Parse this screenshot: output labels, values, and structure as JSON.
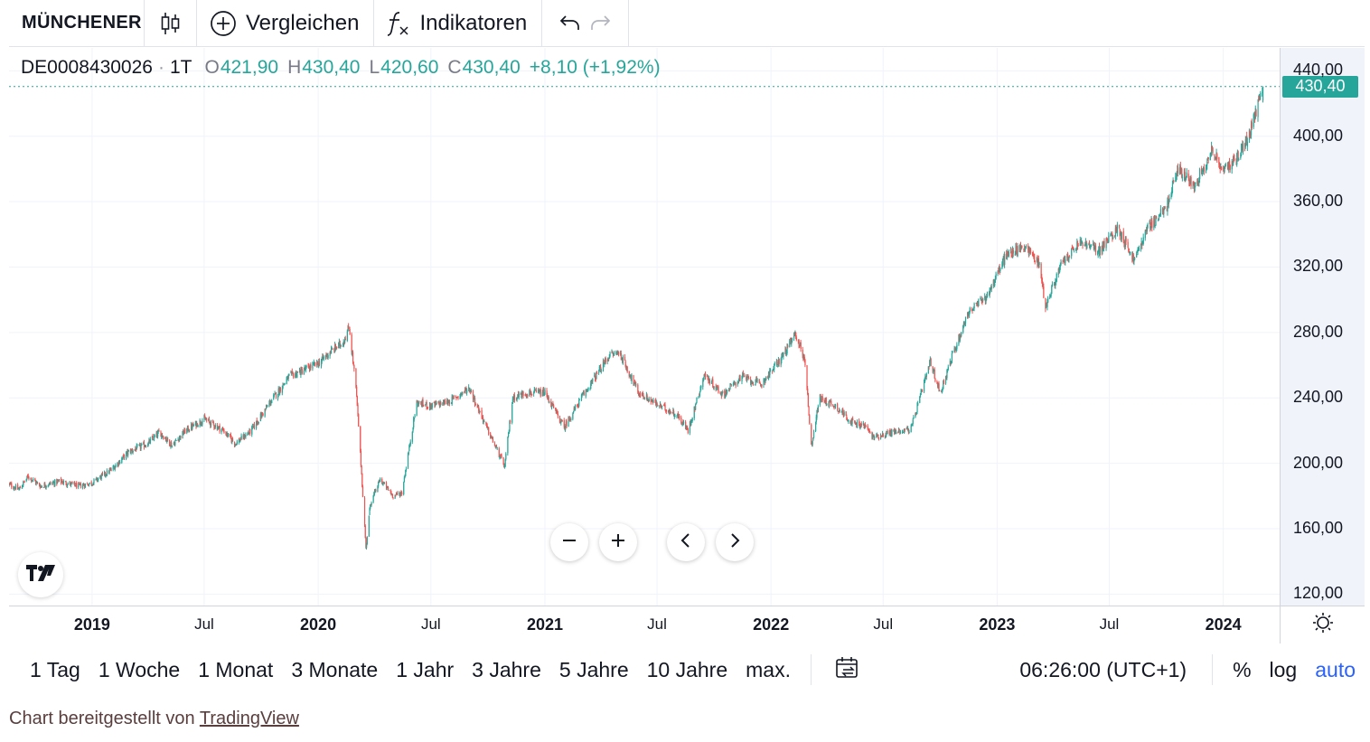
{
  "toolbar": {
    "symbol": "MÜNCHENER",
    "chart_type_icon": "candlestick-icon",
    "compare_label": "Vergleichen",
    "indicators_label": "Indikatoren",
    "undo_icon": "undo-icon",
    "redo_icon": "redo-icon"
  },
  "legend": {
    "symbol": "DE0008430026",
    "interval": "1T",
    "open_key": "O",
    "open": "421,90",
    "high_key": "H",
    "high": "430,40",
    "low_key": "L",
    "low": "420,60",
    "close_key": "C",
    "close": "430,40",
    "change": "+8,10 (+1,92%)"
  },
  "last_price": "430,40",
  "colors": {
    "up": "#26a69a",
    "down": "#ef5350",
    "accent": "#2962ff",
    "axis_bg": "#f0f3fa"
  },
  "chart_data": {
    "type": "candlestick",
    "title": "",
    "y_ticks": [
      "440,00",
      "400,00",
      "360,00",
      "320,00",
      "280,00",
      "240,00",
      "200,00",
      "160,00",
      "120,00"
    ],
    "ylim": [
      113,
      454
    ],
    "x_ticks": [
      "2019",
      "Jul",
      "2020",
      "Jul",
      "2021",
      "Jul",
      "2022",
      "Jul",
      "2023",
      "Jul",
      "2024"
    ],
    "xlim": [
      "2018-08-20",
      "2024-04-01"
    ],
    "grid": true,
    "series": [
      {
        "interval": "1T",
        "approx_close_path": [
          [
            "2018-08-20",
            187
          ],
          [
            "2018-09-05",
            184
          ],
          [
            "2018-09-20",
            192
          ],
          [
            "2018-10-10",
            186
          ],
          [
            "2018-11-10",
            189
          ],
          [
            "2018-12-10",
            186
          ],
          [
            "2019-01-01",
            188
          ],
          [
            "2019-02-01",
            196
          ],
          [
            "2019-03-01",
            207
          ],
          [
            "2019-04-01",
            212
          ],
          [
            "2019-04-20",
            219
          ],
          [
            "2019-05-10",
            211
          ],
          [
            "2019-06-01",
            220
          ],
          [
            "2019-07-01",
            227
          ],
          [
            "2019-08-01",
            220
          ],
          [
            "2019-08-20",
            212
          ],
          [
            "2019-09-15",
            220
          ],
          [
            "2019-10-15",
            237
          ],
          [
            "2019-11-15",
            253
          ],
          [
            "2020-01-01",
            261
          ],
          [
            "2020-01-20",
            268
          ],
          [
            "2020-02-10",
            274
          ],
          [
            "2020-02-20",
            283
          ],
          [
            "2020-03-02",
            246
          ],
          [
            "2020-03-10",
            200
          ],
          [
            "2020-03-18",
            148
          ],
          [
            "2020-03-25",
            175
          ],
          [
            "2020-04-10",
            190
          ],
          [
            "2020-05-01",
            180
          ],
          [
            "2020-05-15",
            182
          ],
          [
            "2020-06-08",
            237
          ],
          [
            "2020-07-01",
            235
          ],
          [
            "2020-08-01",
            238
          ],
          [
            "2020-09-01",
            246
          ],
          [
            "2020-10-01",
            220
          ],
          [
            "2020-10-28",
            198
          ],
          [
            "2020-11-10",
            240
          ],
          [
            "2020-12-01",
            243
          ],
          [
            "2021-01-01",
            243
          ],
          [
            "2021-02-01",
            222
          ],
          [
            "2021-03-01",
            240
          ],
          [
            "2021-04-15",
            266
          ],
          [
            "2021-05-01",
            268
          ],
          [
            "2021-06-01",
            243
          ],
          [
            "2021-07-01",
            236
          ],
          [
            "2021-08-01",
            230
          ],
          [
            "2021-08-20",
            220
          ],
          [
            "2021-09-15",
            254
          ],
          [
            "2021-10-15",
            242
          ],
          [
            "2021-11-15",
            253
          ],
          [
            "2021-12-15",
            248
          ],
          [
            "2022-01-15",
            263
          ],
          [
            "2022-02-10",
            279
          ],
          [
            "2022-02-25",
            262
          ],
          [
            "2022-03-07",
            210
          ],
          [
            "2022-03-20",
            240
          ],
          [
            "2022-04-15",
            235
          ],
          [
            "2022-05-15",
            224
          ],
          [
            "2022-06-01",
            223
          ],
          [
            "2022-06-15",
            216
          ],
          [
            "2022-07-15",
            219
          ],
          [
            "2022-08-15",
            221
          ],
          [
            "2022-09-15",
            262
          ],
          [
            "2022-10-01",
            243
          ],
          [
            "2022-10-20",
            265
          ],
          [
            "2022-11-15",
            292
          ],
          [
            "2022-12-15",
            302
          ],
          [
            "2023-01-15",
            327
          ],
          [
            "2023-02-15",
            333
          ],
          [
            "2023-03-10",
            322
          ],
          [
            "2023-03-20",
            296
          ],
          [
            "2023-04-15",
            322
          ],
          [
            "2023-05-15",
            335
          ],
          [
            "2023-06-15",
            330
          ],
          [
            "2023-07-15",
            344
          ],
          [
            "2023-08-10",
            324
          ],
          [
            "2023-09-01",
            344
          ],
          [
            "2023-10-01",
            356
          ],
          [
            "2023-10-20",
            380
          ],
          [
            "2023-11-15",
            370
          ],
          [
            "2023-12-15",
            392
          ],
          [
            "2024-01-01",
            378
          ],
          [
            "2024-01-20",
            386
          ],
          [
            "2024-02-10",
            398
          ],
          [
            "2024-02-25",
            418
          ],
          [
            "2024-03-05",
            430.4
          ]
        ]
      }
    ]
  },
  "range_buttons": [
    "1 Tag",
    "1 Woche",
    "1 Monat",
    "3 Monate",
    "1 Jahr",
    "3 Jahre",
    "5 Jahre",
    "10 Jahre",
    "max."
  ],
  "time_display": "06:26:00 (UTC+1)",
  "scale_options": {
    "percent": "%",
    "log": "log",
    "auto": "auto"
  },
  "footer": {
    "prefix": "Chart bereitgestellt von",
    "link": "TradingView"
  }
}
